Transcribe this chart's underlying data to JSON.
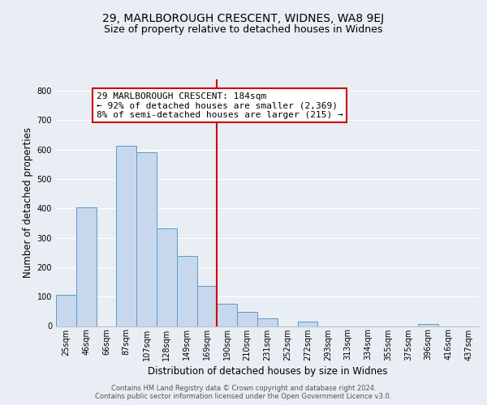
{
  "title": "29, MARLBOROUGH CRESCENT, WIDNES, WA8 9EJ",
  "subtitle": "Size of property relative to detached houses in Widnes",
  "xlabel": "Distribution of detached houses by size in Widnes",
  "ylabel": "Number of detached properties",
  "bar_labels": [
    "25sqm",
    "46sqm",
    "66sqm",
    "87sqm",
    "107sqm",
    "128sqm",
    "149sqm",
    "169sqm",
    "190sqm",
    "210sqm",
    "231sqm",
    "252sqm",
    "272sqm",
    "293sqm",
    "313sqm",
    "334sqm",
    "355sqm",
    "375sqm",
    "396sqm",
    "416sqm",
    "437sqm"
  ],
  "bar_values": [
    106,
    403,
    0,
    612,
    591,
    331,
    239,
    136,
    75,
    48,
    25,
    0,
    15,
    0,
    0,
    0,
    0,
    0,
    8,
    0,
    0
  ],
  "bar_color": "#c8d8ec",
  "bar_edge_color": "#5a9aca",
  "vline_x_index": 8.0,
  "vline_color": "#cc0000",
  "annotation_title": "29 MARLBOROUGH CRESCENT: 184sqm",
  "annotation_line1": "← 92% of detached houses are smaller (2,369)",
  "annotation_line2": "8% of semi-detached houses are larger (215) →",
  "annotation_box_color": "#ffffff",
  "annotation_box_edge": "#cc0000",
  "ylim": [
    0,
    840
  ],
  "yticks": [
    0,
    100,
    200,
    300,
    400,
    500,
    600,
    700,
    800
  ],
  "footer_line1": "Contains HM Land Registry data © Crown copyright and database right 2024.",
  "footer_line2": "Contains public sector information licensed under the Open Government Licence v3.0.",
  "bg_color": "#e8eef4",
  "plot_bg_color": "#e8eef4",
  "grid_color": "#ffffff",
  "title_fontsize": 10,
  "subtitle_fontsize": 9,
  "axis_label_fontsize": 8.5,
  "tick_fontsize": 7,
  "annotation_fontsize": 8,
  "footer_fontsize": 6
}
